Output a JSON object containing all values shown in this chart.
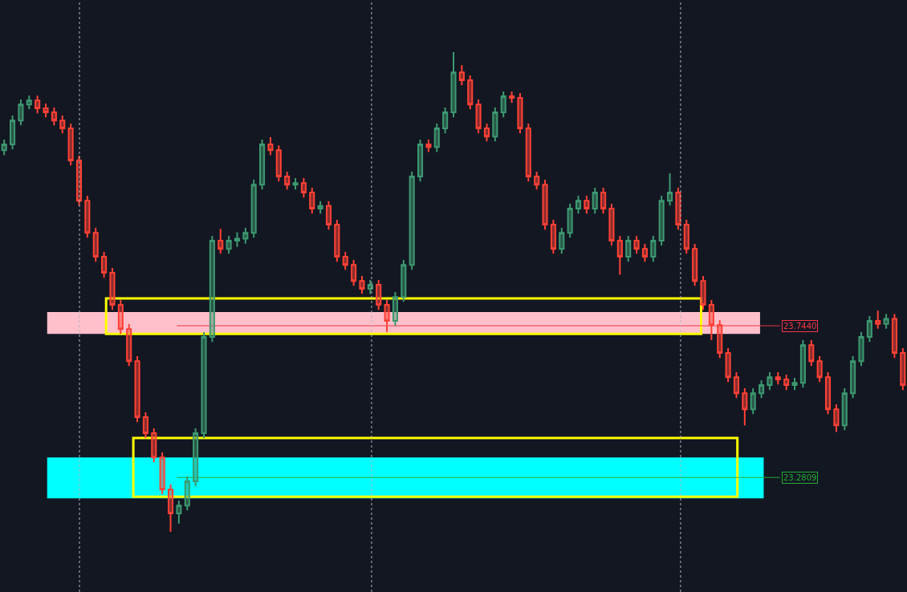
{
  "chart_data": {
    "type": "candlestick",
    "categories": [
      null,
      null,
      null,
      null,
      null,
      null,
      null,
      null,
      null,
      null,
      null,
      null,
      null,
      null,
      null,
      null,
      null,
      null,
      null,
      null,
      null,
      null,
      null,
      null,
      null,
      null,
      null,
      null,
      null,
      null,
      null,
      null,
      null,
      null,
      null,
      null,
      null,
      null,
      null,
      null,
      null,
      null,
      null,
      null,
      null,
      null,
      null,
      null,
      null,
      null,
      null,
      null,
      null,
      null,
      null,
      null,
      null,
      null,
      null,
      null,
      null,
      null,
      null,
      null,
      null,
      null,
      null,
      null,
      null,
      null,
      null,
      null,
      null,
      null,
      null,
      null,
      null,
      null,
      null,
      null,
      null,
      null,
      null,
      null,
      null,
      null,
      null,
      null,
      null,
      null,
      null,
      null,
      null,
      null,
      null,
      null,
      null,
      null,
      null,
      null,
      null,
      null,
      null,
      null,
      null,
      null,
      null,
      null,
      null
    ],
    "ohlc": [
      [
        24.28,
        24.313,
        24.265,
        24.298
      ],
      [
        24.298,
        24.386,
        24.283,
        24.371
      ],
      [
        24.371,
        24.435,
        24.356,
        24.42
      ],
      [
        24.42,
        24.447,
        24.405,
        24.432
      ],
      [
        24.432,
        24.447,
        24.393,
        24.408
      ],
      [
        24.408,
        24.423,
        24.381,
        24.396
      ],
      [
        24.396,
        24.411,
        24.356,
        24.371
      ],
      [
        24.371,
        24.386,
        24.332,
        24.347
      ],
      [
        24.347,
        24.362,
        24.234,
        24.249
      ],
      [
        24.249,
        24.264,
        24.111,
        24.126
      ],
      [
        24.126,
        24.141,
        24.013,
        24.028
      ],
      [
        24.028,
        24.043,
        23.94,
        23.955
      ],
      [
        23.955,
        23.97,
        23.891,
        23.906
      ],
      [
        23.906,
        23.921,
        23.793,
        23.808
      ],
      [
        23.808,
        23.823,
        23.719,
        23.734
      ],
      [
        23.734,
        23.749,
        23.621,
        23.636
      ],
      [
        23.636,
        23.651,
        23.45,
        23.465
      ],
      [
        23.465,
        23.48,
        23.401,
        23.416
      ],
      [
        23.416,
        23.431,
        23.327,
        23.342
      ],
      [
        23.342,
        23.357,
        23.229,
        23.244
      ],
      [
        23.244,
        23.259,
        23.115,
        23.171
      ],
      [
        23.171,
        23.21,
        23.14,
        23.195
      ],
      [
        23.195,
        23.284,
        23.18,
        23.269
      ],
      [
        23.269,
        23.431,
        23.254,
        23.416
      ],
      [
        23.416,
        23.725,
        23.401,
        23.71
      ],
      [
        23.71,
        24.019,
        23.695,
        24.004
      ],
      [
        24.004,
        24.04,
        23.964,
        23.979
      ],
      [
        23.979,
        24.019,
        23.964,
        24.004
      ],
      [
        24.004,
        24.03,
        23.985,
        24.01
      ],
      [
        24.01,
        24.043,
        23.995,
        24.028
      ],
      [
        24.028,
        24.19,
        24.013,
        24.175
      ],
      [
        24.175,
        24.313,
        24.16,
        24.298
      ],
      [
        24.298,
        24.32,
        24.265,
        24.28
      ],
      [
        24.28,
        24.295,
        24.185,
        24.2
      ],
      [
        24.2,
        24.215,
        24.16,
        24.175
      ],
      [
        24.175,
        24.195,
        24.16,
        24.18
      ],
      [
        24.18,
        24.195,
        24.136,
        24.151
      ],
      [
        24.151,
        24.166,
        24.087,
        24.102
      ],
      [
        24.102,
        24.125,
        24.087,
        24.11
      ],
      [
        24.11,
        24.125,
        24.038,
        24.053
      ],
      [
        24.053,
        24.068,
        23.94,
        23.955
      ],
      [
        23.955,
        23.97,
        23.915,
        23.93
      ],
      [
        23.93,
        23.945,
        23.866,
        23.881
      ],
      [
        23.881,
        23.896,
        23.842,
        23.857
      ],
      [
        23.857,
        23.884,
        23.842,
        23.869
      ],
      [
        23.869,
        23.884,
        23.793,
        23.808
      ],
      [
        23.808,
        23.823,
        23.725,
        23.759
      ],
      [
        23.759,
        23.847,
        23.744,
        23.832
      ],
      [
        23.832,
        23.945,
        23.817,
        23.93
      ],
      [
        23.93,
        24.215,
        23.915,
        24.2
      ],
      [
        24.2,
        24.313,
        24.185,
        24.298
      ],
      [
        24.298,
        24.313,
        24.275,
        24.29
      ],
      [
        24.29,
        24.362,
        24.275,
        24.347
      ],
      [
        24.347,
        24.411,
        24.332,
        24.396
      ],
      [
        24.396,
        24.58,
        24.381,
        24.518
      ],
      [
        24.518,
        24.54,
        24.479,
        24.494
      ],
      [
        24.494,
        24.509,
        24.405,
        24.42
      ],
      [
        24.42,
        24.435,
        24.332,
        24.347
      ],
      [
        24.347,
        24.362,
        24.307,
        24.322
      ],
      [
        24.322,
        24.411,
        24.307,
        24.396
      ],
      [
        24.396,
        24.46,
        24.381,
        24.445
      ],
      [
        24.445,
        24.46,
        24.425,
        24.44
      ],
      [
        24.44,
        24.455,
        24.332,
        24.347
      ],
      [
        24.347,
        24.362,
        24.185,
        24.2
      ],
      [
        24.2,
        24.215,
        24.16,
        24.175
      ],
      [
        24.175,
        24.19,
        24.038,
        24.053
      ],
      [
        24.053,
        24.068,
        23.964,
        23.979
      ],
      [
        23.979,
        24.043,
        23.964,
        24.028
      ],
      [
        24.028,
        24.117,
        24.013,
        24.102
      ],
      [
        24.102,
        24.141,
        24.087,
        24.126
      ],
      [
        24.126,
        24.141,
        24.087,
        24.102
      ],
      [
        24.102,
        24.166,
        24.087,
        24.151
      ],
      [
        24.151,
        24.166,
        24.087,
        24.102
      ],
      [
        24.102,
        24.117,
        23.989,
        24.004
      ],
      [
        24.004,
        24.019,
        23.9,
        23.955
      ],
      [
        23.955,
        24.019,
        23.94,
        24.004
      ],
      [
        24.004,
        24.019,
        23.964,
        23.979
      ],
      [
        23.979,
        23.994,
        23.94,
        23.955
      ],
      [
        23.955,
        24.019,
        23.94,
        24.004
      ],
      [
        24.004,
        24.141,
        23.989,
        24.126
      ],
      [
        24.126,
        24.21,
        24.111,
        24.151
      ],
      [
        24.151,
        24.166,
        24.038,
        24.053
      ],
      [
        24.053,
        24.068,
        23.964,
        23.979
      ],
      [
        23.979,
        23.994,
        23.866,
        23.881
      ],
      [
        23.881,
        23.896,
        23.793,
        23.808
      ],
      [
        23.808,
        23.823,
        23.7,
        23.746
      ],
      [
        23.746,
        23.761,
        23.646,
        23.661
      ],
      [
        23.661,
        23.676,
        23.572,
        23.587
      ],
      [
        23.587,
        23.602,
        23.523,
        23.538
      ],
      [
        23.538,
        23.553,
        23.44,
        23.489
      ],
      [
        23.489,
        23.553,
        23.474,
        23.538
      ],
      [
        23.538,
        23.578,
        23.523,
        23.563
      ],
      [
        23.563,
        23.602,
        23.548,
        23.587
      ],
      [
        23.587,
        23.602,
        23.565,
        23.58
      ],
      [
        23.58,
        23.595,
        23.548,
        23.563
      ],
      [
        23.563,
        23.585,
        23.548,
        23.57
      ],
      [
        23.57,
        23.7,
        23.555,
        23.685
      ],
      [
        23.685,
        23.7,
        23.621,
        23.636
      ],
      [
        23.636,
        23.651,
        23.572,
        23.587
      ],
      [
        23.587,
        23.602,
        23.474,
        23.489
      ],
      [
        23.489,
        23.504,
        23.42,
        23.44
      ],
      [
        23.44,
        23.553,
        23.425,
        23.538
      ],
      [
        23.538,
        23.651,
        23.523,
        23.636
      ],
      [
        23.636,
        23.725,
        23.621,
        23.71
      ],
      [
        23.71,
        23.774,
        23.695,
        23.759
      ],
      [
        23.759,
        23.79,
        23.735,
        23.75
      ],
      [
        23.75,
        23.78,
        23.735,
        23.765
      ],
      [
        23.765,
        23.78,
        23.646,
        23.661
      ],
      [
        23.661,
        23.676,
        23.548,
        23.563
      ]
    ],
    "ylim": [
      22.931,
      24.739
    ],
    "ref_lines": [
      {
        "axis": "y",
        "value": 23.744,
        "label": "23.7440",
        "color": "#f23645"
      },
      {
        "axis": "y",
        "value": 23.2809,
        "label": "23.2809",
        "color": "#22ab34"
      }
    ],
    "bands": [
      {
        "axis": "y",
        "from": 23.7195,
        "to": 23.786,
        "color": "#ffc0cb"
      },
      {
        "axis": "y",
        "from": 23.217,
        "to": 23.342,
        "color": "#00ffff"
      }
    ],
    "grid": false,
    "legend": false,
    "tick_labels": false
  }
}
